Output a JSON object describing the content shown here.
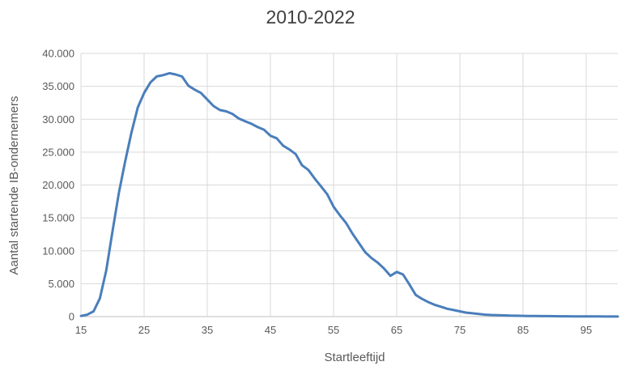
{
  "chart_data": {
    "type": "line",
    "title": "2010-2022",
    "xlabel": "Startleeftijd",
    "ylabel": "Aantal startende IB-ondernemers",
    "xlim": [
      15,
      100
    ],
    "ylim": [
      0,
      40000
    ],
    "x_ticks": [
      15,
      25,
      35,
      45,
      55,
      65,
      75,
      85,
      95
    ],
    "y_ticks": [
      0,
      5000,
      10000,
      15000,
      20000,
      25000,
      30000,
      35000,
      40000
    ],
    "y_tick_labels": [
      "0",
      "5.000",
      "10.000",
      "15.000",
      "20.000",
      "25.000",
      "30.000",
      "35.000",
      "40.000"
    ],
    "grid": true,
    "line_color": "#4a7ebb",
    "series": [
      {
        "x": [
          15,
          16,
          17,
          18,
          19,
          20,
          21,
          22,
          23,
          24,
          25,
          26,
          27,
          28,
          29,
          30,
          31,
          32,
          33,
          34,
          35,
          36,
          37,
          38,
          39,
          40,
          41,
          42,
          43,
          44,
          45,
          46,
          47,
          48,
          49,
          50,
          51,
          52,
          53,
          54,
          55,
          56,
          57,
          58,
          59,
          60,
          61,
          62,
          63,
          64,
          65,
          66,
          67,
          68,
          69,
          70,
          71,
          72,
          73,
          74,
          75,
          76,
          77,
          78,
          79,
          80,
          81,
          82,
          83,
          84,
          85,
          86,
          87,
          88,
          89,
          90,
          91,
          92,
          93,
          94,
          95,
          96,
          97,
          98,
          99,
          100
        ],
        "values": [
          100,
          300,
          800,
          2800,
          7000,
          13000,
          18800,
          23600,
          28000,
          31800,
          34000,
          35600,
          36500,
          36700,
          37000,
          36800,
          36500,
          35100,
          34500,
          34000,
          33000,
          32000,
          31400,
          31200,
          30800,
          30100,
          29700,
          29300,
          28800,
          28400,
          27500,
          27100,
          26000,
          25400,
          24700,
          23000,
          22300,
          21000,
          19800,
          18600,
          16700,
          15400,
          14200,
          12600,
          11200,
          9800,
          8900,
          8200,
          7300,
          6200,
          6800,
          6400,
          4900,
          3300,
          2700,
          2200,
          1800,
          1500,
          1200,
          1000,
          800,
          600,
          500,
          400,
          300,
          250,
          220,
          180,
          150,
          130,
          110,
          100,
          90,
          80,
          70,
          60,
          50,
          45,
          40,
          35,
          30,
          25,
          20,
          15,
          12,
          10
        ]
      }
    ]
  }
}
